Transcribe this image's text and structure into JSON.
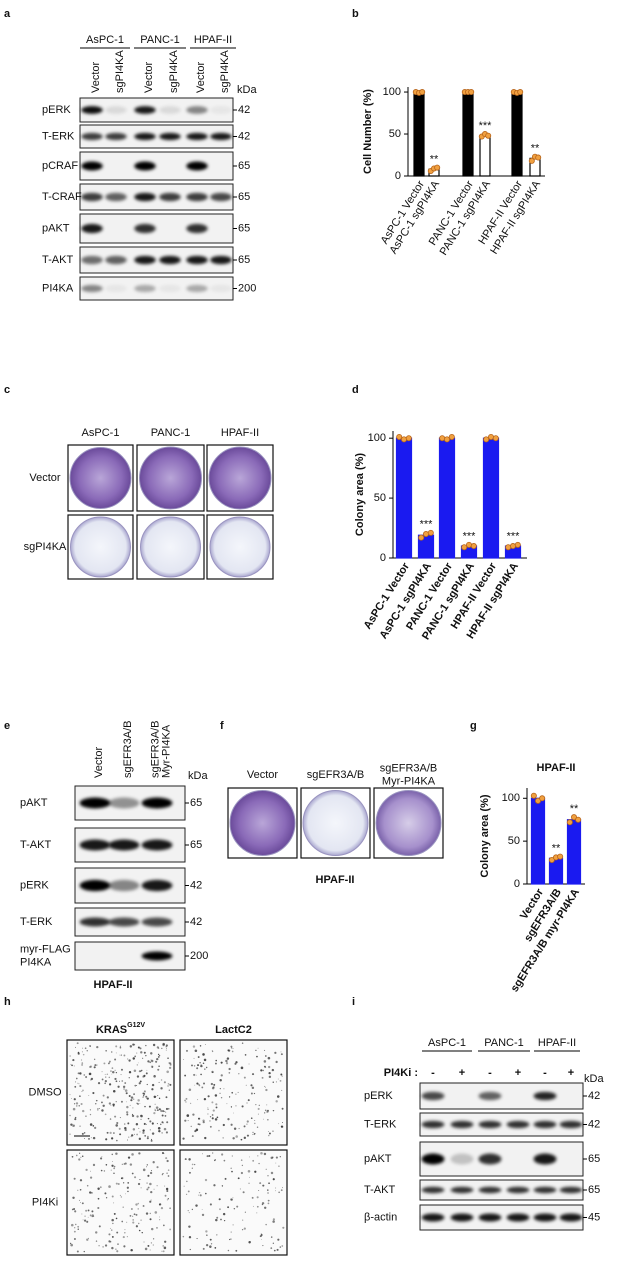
{
  "blot_a": {
    "label": "a",
    "groups": [
      "AsPC-1",
      "PANC-1",
      "HPAF-II"
    ],
    "lanes": [
      "Vector",
      "sgPI4KA",
      "Vector",
      "sgPI4KA",
      "Vector",
      "sgPI4KA"
    ],
    "unit": "kDa",
    "rows": [
      {
        "name": "pERK",
        "kda": 42
      },
      {
        "name": "T-ERK",
        "kda": 42
      },
      {
        "name": "pCRAF",
        "kda": 65
      },
      {
        "name": "T-CRAF",
        "kda": 65
      },
      {
        "name": "pAKT",
        "kda": 65
      },
      {
        "name": "T-AKT",
        "kda": 65
      },
      {
        "name": "PI4KA",
        "kda": 200
      }
    ]
  },
  "chart_data": [
    {
      "type": "bar",
      "panel": "b",
      "ylabel": "Cell Number (%)",
      "categories": [
        "AsPC-1 Vector",
        "AsPC-1 sgPI4KA",
        "PANC-1 Vector",
        "PANC-1 sgPI4KA",
        "HPAF-II Vector",
        "HPAF-II sgPI4KA"
      ],
      "values": [
        100,
        8,
        100,
        48,
        100,
        21
      ],
      "points": [
        [
          100,
          99,
          100
        ],
        [
          6,
          9,
          10
        ],
        [
          100,
          100,
          100
        ],
        [
          47,
          50,
          48
        ],
        [
          100,
          99,
          100
        ],
        [
          18,
          23,
          22
        ]
      ],
      "colors": [
        "#000000",
        "#ffffff",
        "#000000",
        "#ffffff",
        "#000000",
        "#ffffff"
      ],
      "edgecolor": "#000000",
      "point_color": "#f0a040",
      "annotations": [
        null,
        "**",
        null,
        "***",
        null,
        "**"
      ],
      "ylim": [
        0,
        106
      ],
      "yticks": [
        0,
        50,
        100
      ]
    },
    {
      "type": "bar",
      "panel": "d",
      "ylabel": "Colony area (%)",
      "categories": [
        "AsPC-1 Vector",
        "AsPC-1 sgPI4KA",
        "PANC-1 Vector",
        "PANC-1 sgPI4KA",
        "HPAF-II Vector",
        "HPAF-II sgPI4KA"
      ],
      "values": [
        100,
        19,
        100,
        10,
        100,
        10
      ],
      "points": [
        [
          101,
          99,
          100
        ],
        [
          17,
          20,
          21
        ],
        [
          100,
          99,
          101
        ],
        [
          9,
          11,
          10
        ],
        [
          99,
          101,
          100
        ],
        [
          9,
          10,
          11
        ]
      ],
      "colors": [
        "#1a1af0",
        "#1a1af0",
        "#1a1af0",
        "#1a1af0",
        "#1a1af0",
        "#1a1af0"
      ],
      "edgecolor": "#1a1af0",
      "point_color": "#f0a040",
      "annotations": [
        null,
        "***",
        null,
        "***",
        null,
        "***"
      ],
      "ylim": [
        0,
        106
      ],
      "yticks": [
        0,
        50,
        100
      ]
    },
    {
      "type": "bar",
      "panel": "g",
      "title": "HPAF-II",
      "ylabel": "Colony area (%)",
      "categories": [
        "Vector",
        "sgEFR3A/B",
        "sgEFR3A/B myr-PI4KA"
      ],
      "values": [
        100,
        30,
        75
      ],
      "points": [
        [
          103,
          97,
          100
        ],
        [
          28,
          31,
          32
        ],
        [
          72,
          78,
          75
        ]
      ],
      "colors": [
        "#1a1af0",
        "#1a1af0",
        "#1a1af0"
      ],
      "edgecolor": "#1a1af0",
      "point_color": "#f0a040",
      "annotations": [
        null,
        "**",
        "**"
      ],
      "ylim": [
        0,
        112
      ],
      "yticks": [
        0,
        50,
        100
      ]
    }
  ],
  "plates_c": {
    "label": "c",
    "columns": [
      "AsPC-1",
      "PANC-1",
      "HPAF-II"
    ],
    "rows": [
      "Vector",
      "sgPI4KA"
    ]
  },
  "blot_e": {
    "label": "e",
    "lanes": [
      [
        "Vector"
      ],
      [
        "sgEFR3A/B"
      ],
      [
        "sgEFR3A/B",
        "Myr-PI4KA"
      ]
    ],
    "unit": "kDa",
    "rows": [
      {
        "name": [
          "pAKT"
        ],
        "kda": 65
      },
      {
        "name": [
          "T-AKT"
        ],
        "kda": 65
      },
      {
        "name": [
          "pERK"
        ],
        "kda": 42
      },
      {
        "name": [
          "T-ERK"
        ],
        "kda": 42
      },
      {
        "name": [
          "myr-FLAG",
          "PI4KA"
        ],
        "kda": 200
      }
    ],
    "caption": "HPAF-II"
  },
  "plates_f": {
    "label": "f",
    "columns": [
      [
        "Vector"
      ],
      [
        "sgEFR3A/B"
      ],
      [
        "sgEFR3A/B",
        "Myr-PI4KA"
      ]
    ],
    "caption": "HPAF-II"
  },
  "images_h": {
    "label": "h",
    "columns": [
      {
        "text": "KRAS",
        "sup": "G12V"
      },
      {
        "text": "LactC2"
      }
    ],
    "rows": [
      "DMSO",
      "PI4Ki"
    ]
  },
  "blot_i": {
    "label": "i",
    "groups": [
      "AsPC-1",
      "PANC-1",
      "HPAF-II"
    ],
    "treatment": "PI4Ki :",
    "lanes": [
      "-",
      "+",
      "-",
      "+",
      "-",
      "+"
    ],
    "unit": "kDa",
    "rows": [
      {
        "name": "pERK",
        "kda": 42
      },
      {
        "name": "T-ERK",
        "kda": 42
      },
      {
        "name": "pAKT",
        "kda": 65
      },
      {
        "name": "T-AKT",
        "kda": 65
      },
      {
        "name": "β-actin",
        "kda": 45
      }
    ]
  }
}
